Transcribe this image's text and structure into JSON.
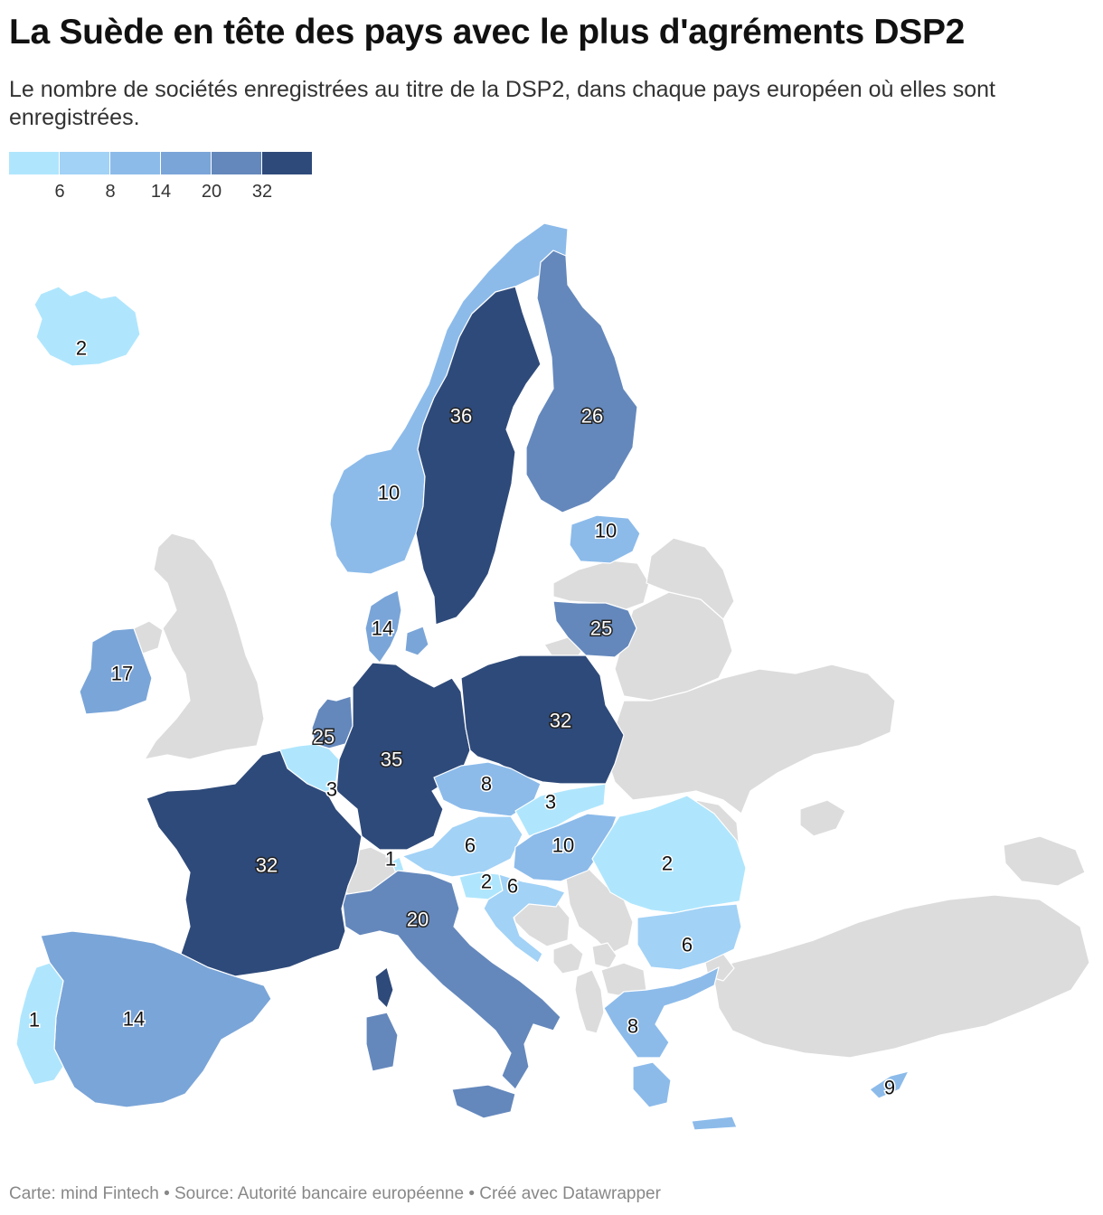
{
  "title": "La Suède en tête des pays avec le plus d'agréments DSP2",
  "subtitle": "Le nombre de sociétés enregistrées au titre de la DSP2, dans chaque pays européen où elles sont enregistrées.",
  "legend": {
    "colors": [
      "#afe6fd",
      "#a2d2f6",
      "#8cbbea",
      "#7aa5d8",
      "#6488bc",
      "#2e4a7a"
    ],
    "ticks": [
      "6",
      "8",
      "14",
      "20",
      "32"
    ]
  },
  "no_data_color": "#dcdcdc",
  "footer": "Carte: mind Fintech • Source: Autorité bancaire européenne • Créé avec Datawrapper",
  "chart_data": {
    "type": "choropleth",
    "breaks": [
      6,
      8,
      14,
      20,
      32
    ],
    "regions": [
      {
        "name": "Iceland",
        "value": 2
      },
      {
        "name": "Norway",
        "value": 10
      },
      {
        "name": "Sweden",
        "value": 36
      },
      {
        "name": "Finland",
        "value": 26
      },
      {
        "name": "Estonia",
        "value": 10
      },
      {
        "name": "Lithuania",
        "value": 25
      },
      {
        "name": "Denmark",
        "value": 14
      },
      {
        "name": "Ireland",
        "value": 17
      },
      {
        "name": "Netherlands",
        "value": 25
      },
      {
        "name": "Belgium",
        "value": 3
      },
      {
        "name": "Germany",
        "value": 35
      },
      {
        "name": "Poland",
        "value": 32
      },
      {
        "name": "Czechia",
        "value": 8
      },
      {
        "name": "Slovakia",
        "value": 3
      },
      {
        "name": "Austria",
        "value": 6
      },
      {
        "name": "Hungary",
        "value": 10
      },
      {
        "name": "Liechtenstein",
        "value": 1
      },
      {
        "name": "Slovenia",
        "value": 2
      },
      {
        "name": "Croatia",
        "value": 6
      },
      {
        "name": "Romania",
        "value": 2
      },
      {
        "name": "Bulgaria",
        "value": 6
      },
      {
        "name": "Greece",
        "value": 8
      },
      {
        "name": "Cyprus",
        "value": 9
      },
      {
        "name": "Italy",
        "value": 20
      },
      {
        "name": "France",
        "value": 32
      },
      {
        "name": "Spain",
        "value": 14
      },
      {
        "name": "Portugal",
        "value": 1
      }
    ]
  }
}
